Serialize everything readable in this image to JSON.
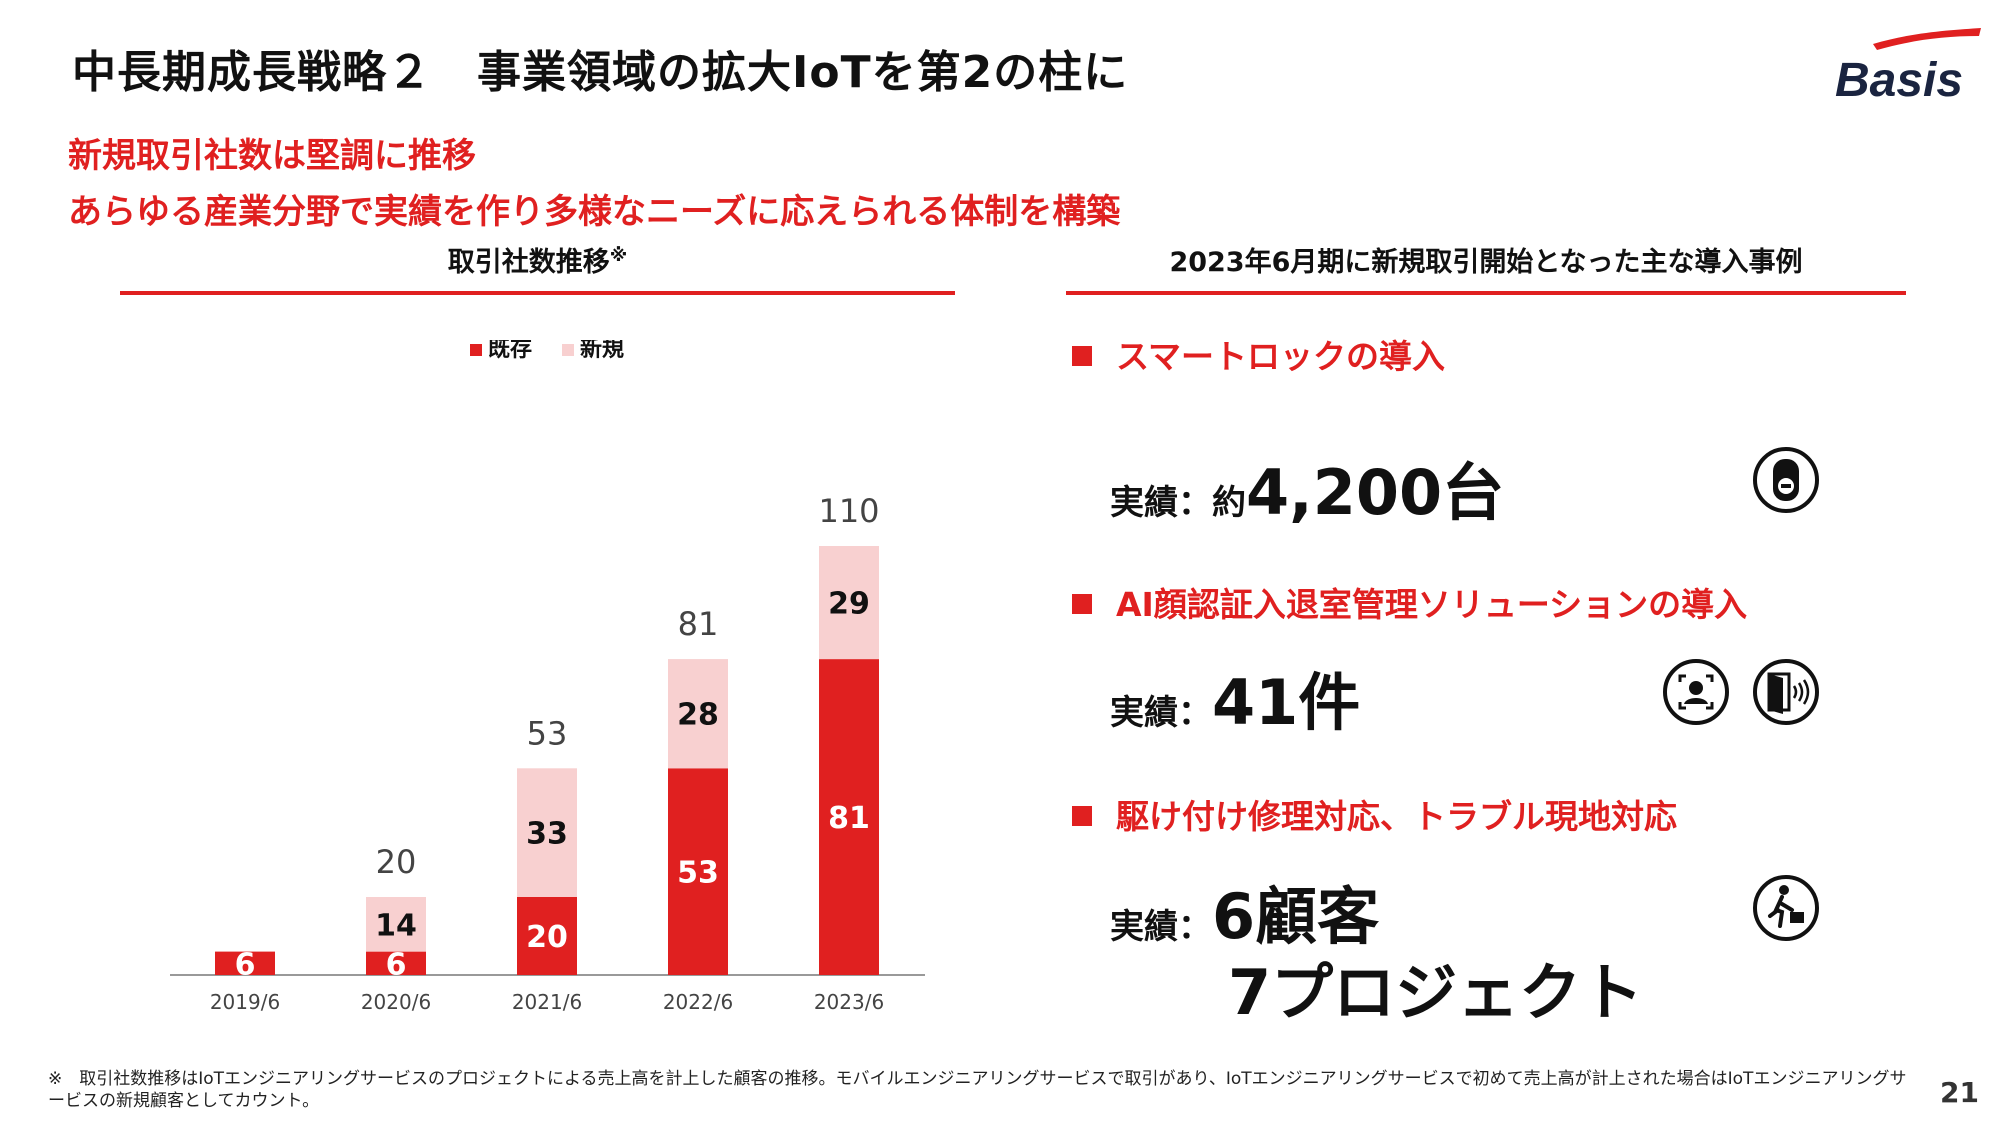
{
  "title": "中長期成長戦略２　事業領域の拡大IoTを第2の柱に",
  "logo_text": "Basis",
  "subtitle_lines": [
    "新規取引社数は堅調に推移",
    "あらゆる産業分野で実績を作り多様なニーズに応えられる体制を構築"
  ],
  "left_heading": "取引社数推移",
  "left_heading_mark": "※",
  "right_heading": "2023年6月期に新規取引開始となった主な導入事例",
  "cases": [
    {
      "title": "スマートロックの導入",
      "result_label": "実績：",
      "result_prefix": "約",
      "result_value": "4,200台",
      "result_value2": "",
      "icons": [
        "smart-lock-icon"
      ]
    },
    {
      "title": "AI顔認証入退室管理ソリューションの導入",
      "result_label": "実績：",
      "result_prefix": "",
      "result_value": "41件",
      "result_value2": "",
      "icons": [
        "face-recognition-icon",
        "door-access-icon"
      ]
    },
    {
      "title": "駆け付け修理対応、トラブル現地対応",
      "result_label": "実績：",
      "result_prefix": "",
      "result_value": "6顧客",
      "result_value2": "7プロジェクト",
      "icons": [
        "running-person-icon"
      ]
    }
  ],
  "colors": {
    "accent": "#e02020",
    "existing": "#e02020",
    "new": "#f8d0d0"
  },
  "chart_data": {
    "type": "bar",
    "stacked": true,
    "categories": [
      "2019/6",
      "2020/6",
      "2021/6",
      "2022/6",
      "2023/6"
    ],
    "series": [
      {
        "name": "既存",
        "values": [
          6,
          6,
          20,
          53,
          81
        ]
      },
      {
        "name": "新規",
        "values": [
          0,
          14,
          33,
          28,
          29
        ]
      }
    ],
    "totals": [
      "",
      "20",
      "53",
      "81",
      "110"
    ],
    "segment_labels": [
      [
        "6",
        "6",
        "20",
        "53",
        "81"
      ],
      [
        "",
        "14",
        "33",
        "28",
        "29"
      ]
    ],
    "legend_position": "top-center",
    "ylim": [
      0,
      110
    ],
    "grid": false
  },
  "footnote": "※　取引社数推移はIoTエンジニアリングサービスのプロジェクトによる売上高を計上した顧客の推移。モバイルエンジニアリングサービスで取引があり、IoTエンジニアリングサービスで初めて売上高が計上された場合はIoTエンジニアリングサービスの新規顧客としてカウント。",
  "page_number": "21"
}
